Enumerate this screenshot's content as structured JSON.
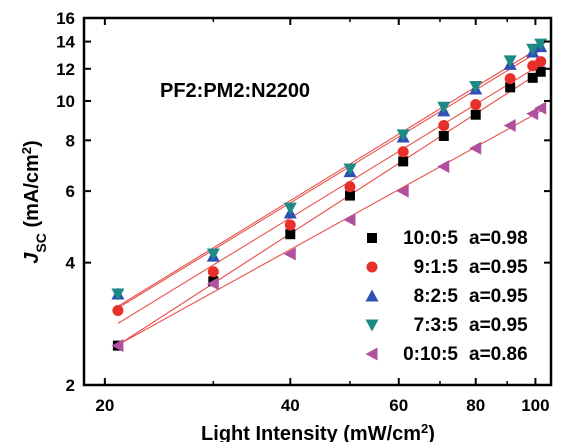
{
  "chart_data": {
    "type": "scatter",
    "x_scale": "log",
    "y_scale": "log",
    "xlim": [
      18.5,
      106
    ],
    "ylim": [
      2,
      16
    ],
    "x_ticks": [
      20,
      40,
      60,
      80,
      100
    ],
    "x_tick_labels": [
      "20",
      "40",
      "60",
      "80",
      "100"
    ],
    "y_ticks": [
      2,
      4,
      6,
      8,
      10,
      12,
      14,
      16
    ],
    "y_tick_labels": [
      "2",
      "4",
      "6",
      "8",
      "10",
      "12",
      "14",
      "16"
    ],
    "xlabel": "Light Intensity (mW/cm",
    "xlabel_sup": "2",
    "xlabel_end": ")",
    "ylabel_main": "J",
    "ylabel_sub": "SC",
    "ylabel_rest": " (mA/cm",
    "ylabel_sup": "2",
    "ylabel_end": ")",
    "annotation": "PF2:PM2:N2200",
    "grid": false,
    "legend_position": "bottom-right",
    "fit_line_color": "#e8504a",
    "series": [
      {
        "name": "10:0:5",
        "a_label": "a=0.98",
        "marker": "square",
        "color": "#000000",
        "x": [
          21,
          30,
          40,
          50,
          61,
          71,
          80,
          91,
          99,
          102
        ],
        "y": [
          2.5,
          3.6,
          4.7,
          5.85,
          7.1,
          8.2,
          9.25,
          10.8,
          11.4,
          11.8
        ]
      },
      {
        "name": "9:1:5",
        "a_label": "a=0.95",
        "marker": "circle",
        "color": "#e8302b",
        "x": [
          21,
          30,
          40,
          50,
          61,
          71,
          80,
          91,
          99,
          102
        ],
        "y": [
          3.05,
          3.8,
          4.95,
          6.15,
          7.5,
          8.7,
          9.8,
          11.35,
          12.2,
          12.5
        ]
      },
      {
        "name": "8:2:5",
        "a_label": "a=0.95",
        "marker": "triangle-up",
        "color": "#2f4fb5",
        "x": [
          21,
          30,
          40,
          50,
          61,
          71,
          80,
          91,
          99,
          102
        ],
        "y": [
          3.35,
          4.15,
          5.3,
          6.7,
          8.15,
          9.45,
          10.7,
          12.3,
          13.2,
          13.6
        ]
      },
      {
        "name": "7:3:5",
        "a_label": "a=0.95",
        "marker": "triangle-down",
        "color": "#1d8a86",
        "x": [
          21,
          30,
          40,
          50,
          61,
          71,
          80,
          91,
          99,
          102
        ],
        "y": [
          3.35,
          4.2,
          5.45,
          6.8,
          8.25,
          9.65,
          10.85,
          12.55,
          13.4,
          13.8
        ]
      },
      {
        "name": "0:10:5",
        "a_label": "a=0.86",
        "marker": "triangle-left",
        "color": "#b0509e",
        "x": [
          21,
          30,
          40,
          50,
          61,
          71,
          80,
          91,
          99,
          102
        ],
        "y": [
          2.5,
          3.55,
          4.2,
          5.1,
          6.0,
          6.9,
          7.65,
          8.7,
          9.3,
          9.6
        ]
      }
    ]
  }
}
